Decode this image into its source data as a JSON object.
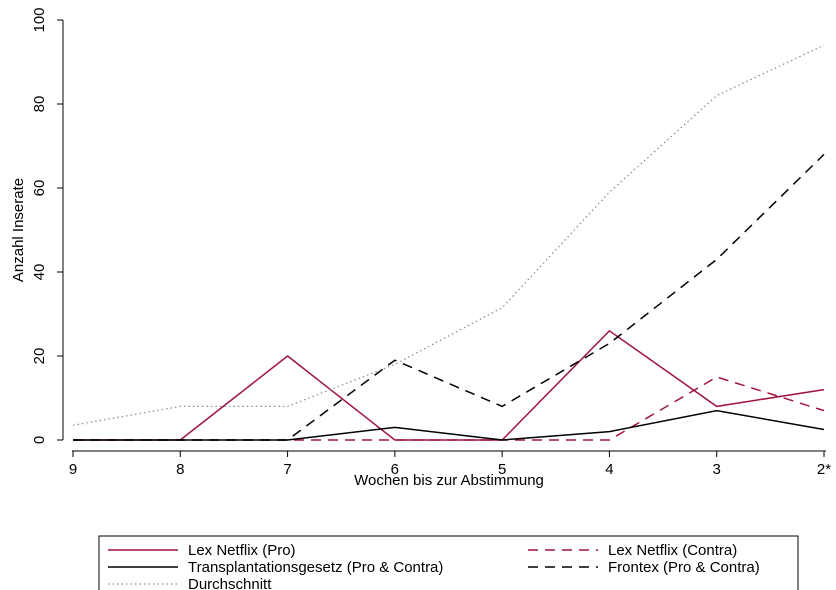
{
  "chart_data": {
    "type": "line",
    "xlabel": "Wochen bis zur Abstimmung",
    "ylabel": "Anzahl Inserate",
    "categories": [
      "9",
      "8",
      "7",
      "6",
      "5",
      "4",
      "3",
      "2*"
    ],
    "ylim": [
      0,
      100
    ],
    "yticks": [
      "0",
      "20",
      "40",
      "60",
      "80",
      "100"
    ],
    "grid": false,
    "legend_position": "bottom",
    "series": [
      {
        "name": "Lex Netflix (Pro)",
        "color": "#a0153e",
        "dash": "solid",
        "values": [
          0,
          0,
          20,
          0,
          0,
          26,
          8,
          12
        ]
      },
      {
        "name": "Lex Netflix (Contra)",
        "color": "#a0153e",
        "dash": "dashed",
        "values": [
          0,
          0,
          0,
          0,
          0,
          0,
          15,
          7
        ]
      },
      {
        "name": "Transplantationsgesetz (Pro & Contra)",
        "color": "#000000",
        "dash": "solid",
        "values": [
          0,
          0,
          0,
          3,
          0,
          2,
          7,
          2.5
        ]
      },
      {
        "name": "Frontex (Pro & Contra)",
        "color": "#000000",
        "dash": "dashed",
        "values": [
          0,
          0,
          0,
          19,
          8,
          23,
          43,
          68
        ]
      },
      {
        "name": "Durchschnitt",
        "color": "#888888",
        "dash": "dotted",
        "values": [
          3.5,
          8,
          8,
          18,
          31.5,
          59,
          82,
          94
        ]
      }
    ]
  }
}
